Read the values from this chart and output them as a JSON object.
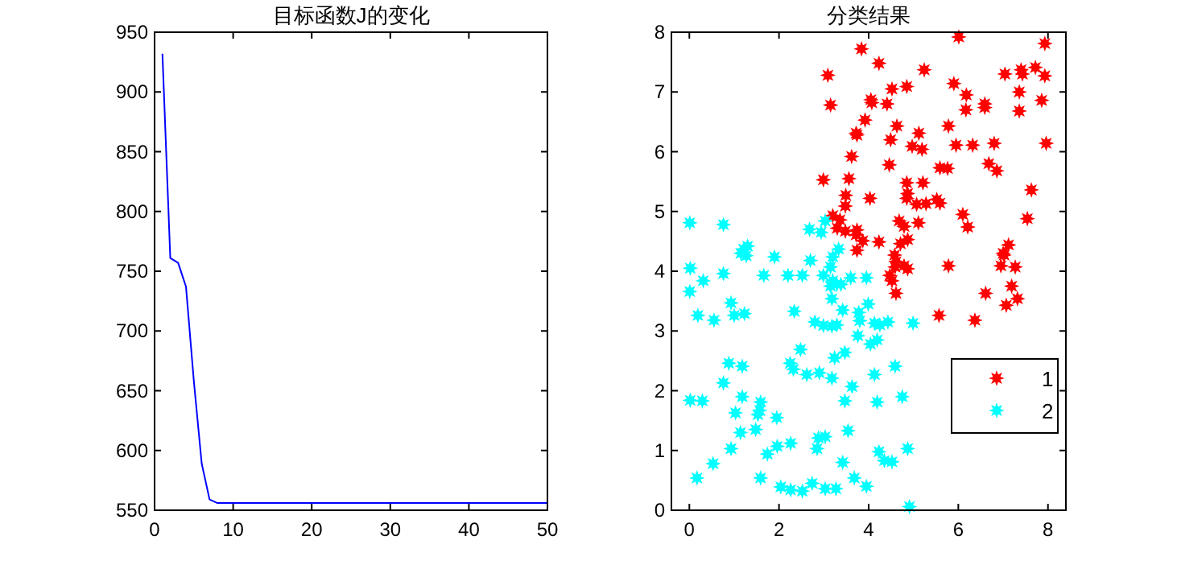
{
  "chart_data": [
    {
      "type": "line",
      "title": "目标函数J的变化",
      "xlim": [
        0,
        50
      ],
      "ylim": [
        550,
        950
      ],
      "xticks": [
        0,
        10,
        20,
        30,
        40,
        50
      ],
      "yticks": [
        550,
        600,
        650,
        700,
        750,
        800,
        850,
        900,
        950
      ],
      "legend": false,
      "grid": false,
      "series": [
        {
          "color": "#0000ff",
          "x": [
            1,
            2,
            3,
            4,
            5,
            6,
            7,
            8,
            50
          ],
          "values": [
            932,
            761,
            757,
            737,
            658,
            589,
            559,
            556,
            556
          ]
        }
      ]
    },
    {
      "type": "scatter",
      "title": "分类结果",
      "xlim": [
        -0.4,
        8.4
      ],
      "ylim": [
        0,
        8
      ],
      "xticks": [
        0,
        2,
        4,
        6,
        8
      ],
      "yticks": [
        0,
        1,
        2,
        3,
        4,
        5,
        6,
        7,
        8
      ],
      "legend": "bottom right",
      "grid": false,
      "marker": "star",
      "series": [
        {
          "name": "1",
          "color": "#ff0000",
          "x": [
            3.84,
            6.01,
            7.93,
            3.09,
            4.23,
            5.24,
            3.15,
            3.92,
            4.05,
            4.07,
            4.41,
            4.52,
            4.85,
            5.9,
            6.18,
            6.17,
            6.59,
            6.59,
            7.04,
            7.4,
            7.43,
            7.72,
            7.93,
            7.36,
            7.86,
            7.36,
            3.72,
            3.74,
            4.63,
            4.49,
            5.12,
            4.97,
            5.19,
            5.78,
            5.95,
            6.32,
            6.8,
            7.96,
            3.62,
            4.46,
            5.59,
            5.76,
            6.68,
            6.86,
            2.99,
            3.56,
            4.85,
            5.21,
            3.49,
            3.48,
            4.87,
            4.85,
            4.03,
            5.07,
            5.28,
            5.52,
            5.59,
            7.63,
            3.2,
            3.36,
            3.3,
            3.48,
            3.74,
            3.72,
            3.87,
            3.74,
            4.23,
            4.68,
            4.79,
            5.11,
            4.87,
            4.71,
            6.1,
            6.21,
            7.54,
            7.12,
            7.0,
            4.58,
            4.61,
            4.79,
            4.87,
            4.59,
            4.47,
            4.52,
            4.61,
            5.78,
            7.02,
            6.95,
            7.27,
            6.61,
            7.19,
            7.07,
            7.32,
            5.57,
            6.37
          ],
          "values": [
            7.72,
            7.92,
            7.81,
            7.28,
            7.48,
            7.37,
            6.78,
            6.53,
            6.87,
            6.82,
            6.8,
            7.05,
            7.09,
            7.14,
            6.95,
            6.7,
            6.8,
            6.74,
            7.3,
            7.37,
            7.3,
            7.41,
            7.27,
            7.0,
            6.86,
            6.68,
            6.31,
            6.28,
            6.43,
            6.2,
            6.31,
            6.09,
            6.04,
            6.43,
            6.11,
            6.11,
            6.14,
            6.14,
            5.92,
            5.78,
            5.73,
            5.72,
            5.8,
            5.68,
            5.53,
            5.55,
            5.48,
            5.48,
            5.27,
            5.09,
            5.3,
            5.22,
            5.22,
            5.12,
            5.13,
            5.2,
            5.14,
            5.36,
            4.93,
            4.86,
            4.72,
            4.67,
            4.69,
            4.61,
            4.51,
            4.35,
            4.49,
            4.84,
            4.75,
            4.81,
            4.53,
            4.46,
            4.95,
            4.74,
            4.88,
            4.44,
            4.3,
            4.27,
            4.16,
            4.09,
            4.04,
            4.07,
            3.93,
            3.84,
            3.63,
            4.09,
            4.27,
            4.09,
            4.07,
            3.63,
            3.75,
            3.43,
            3.54,
            3.26,
            3.18
          ]
        },
        {
          "name": "2",
          "color": "#00ffff",
          "x": [
            0.01,
            0.76,
            1.21,
            1.27,
            1.3,
            1.9,
            2.68,
            2.94,
            3.03,
            3.2,
            3.33,
            2.7,
            0.02,
            0.01,
            0.31,
            0.19,
            0.55,
            0.76,
            0.93,
            1.0,
            1.23,
            1.15,
            1.66,
            2.2,
            2.52,
            2.99,
            3.15,
            3.2,
            3.29,
            3.15,
            3.38,
            3.18,
            3.6,
            3.95,
            3.42,
            2.34,
            2.8,
            2.99,
            3.18,
            3.29,
            3.99,
            3.78,
            3.8,
            4.13,
            4.25,
            4.43,
            3.76,
            4.99,
            4.04,
            4.19,
            2.48,
            3.47,
            3.24,
            0.88,
            1.18,
            2.25,
            2.32,
            2.62,
            2.9,
            3.18,
            4.13,
            4.59,
            0.76,
            3.63,
            0.02,
            0.29,
            1.18,
            1.59,
            1.57,
            1.53,
            1.03,
            3.47,
            4.19,
            4.75,
            1.95,
            1.14,
            1.48,
            2.88,
            3.03,
            3.54,
            0.93,
            1.74,
            1.96,
            2.26,
            2.85,
            4.23,
            4.87,
            0.53,
            3.42,
            4.35,
            4.52,
            0.17,
            1.59,
            3.68,
            3.95,
            2.04,
            2.26,
            2.52,
            2.74,
            3.03,
            3.27,
            4.91
          ],
          "values": [
            4.81,
            4.78,
            4.37,
            4.26,
            4.42,
            4.24,
            4.7,
            4.65,
            4.84,
            4.24,
            4.37,
            4.18,
            4.05,
            3.66,
            3.84,
            3.26,
            3.18,
            3.96,
            3.47,
            3.26,
            3.29,
            4.3,
            3.93,
            3.93,
            3.93,
            3.93,
            4.07,
            3.84,
            3.78,
            3.75,
            3.78,
            3.54,
            3.89,
            3.89,
            3.35,
            3.33,
            3.15,
            3.09,
            3.08,
            3.1,
            3.45,
            3.31,
            3.17,
            3.13,
            3.1,
            3.15,
            2.92,
            3.13,
            2.78,
            2.85,
            2.69,
            2.64,
            2.55,
            2.46,
            2.41,
            2.46,
            2.36,
            2.27,
            2.3,
            2.21,
            2.27,
            2.41,
            2.13,
            2.07,
            1.84,
            1.83,
            1.9,
            1.81,
            1.67,
            1.6,
            1.63,
            1.83,
            1.81,
            1.9,
            1.55,
            1.3,
            1.35,
            1.21,
            1.23,
            1.33,
            1.03,
            0.94,
            1.07,
            1.12,
            1.03,
            0.98,
            1.03,
            0.78,
            0.8,
            0.83,
            0.81,
            0.54,
            0.54,
            0.54,
            0.4,
            0.39,
            0.34,
            0.32,
            0.45,
            0.36,
            0.36,
            0.06
          ]
        }
      ]
    }
  ]
}
